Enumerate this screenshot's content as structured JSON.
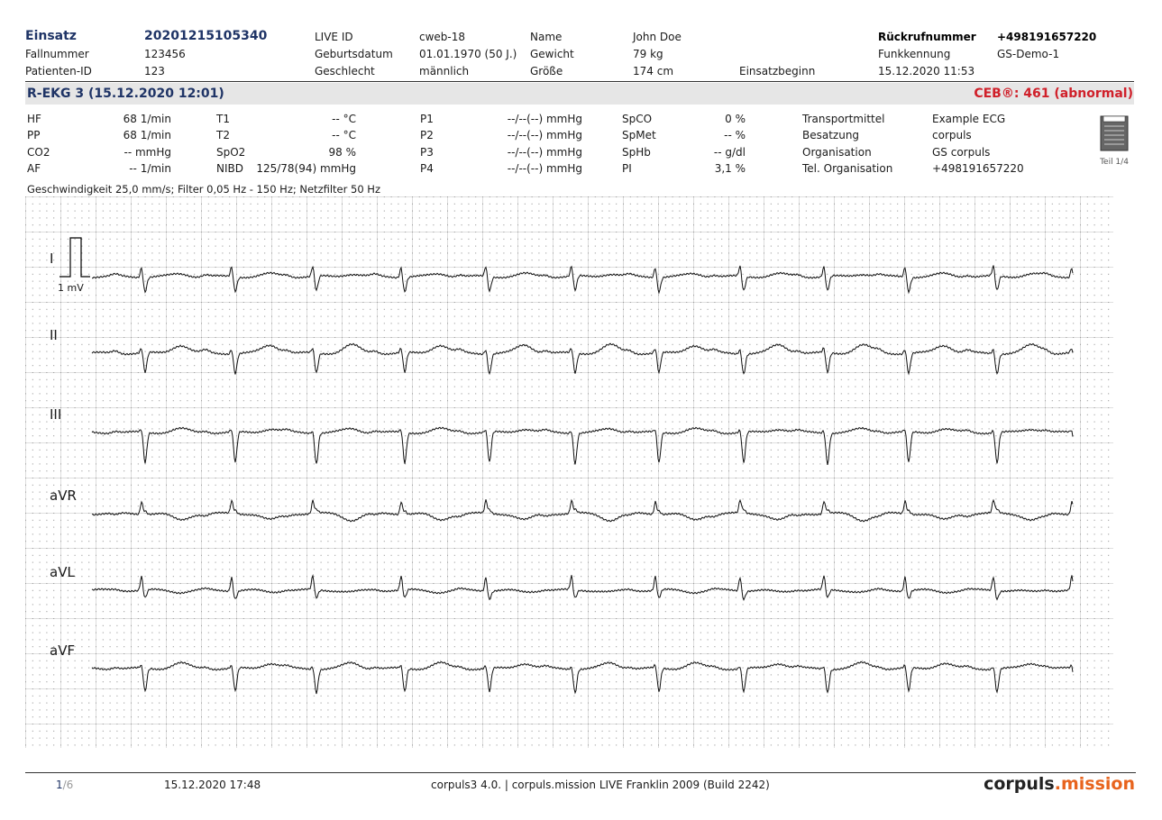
{
  "header": {
    "rows": [
      [
        {
          "label": "Einsatz",
          "value": "20201215105340"
        },
        {
          "label": "LIVE ID",
          "value": "cweb-18"
        },
        {
          "label": "Name",
          "value": "John Doe"
        },
        {
          "label": "Rückrufnummer",
          "value": "+498191657220"
        }
      ],
      [
        {
          "label": "Fallnummer",
          "value": "123456"
        },
        {
          "label": "Geburtsdatum",
          "value": "01.01.1970 (50 J.)"
        },
        {
          "label": "Gewicht",
          "value": "79 kg"
        },
        {
          "label": "Funkkennung",
          "value": "GS-Demo-1"
        }
      ],
      [
        {
          "label": "Patienten-ID",
          "value": "123"
        },
        {
          "label": "Geschlecht",
          "value": "männlich"
        },
        {
          "label": "Größe",
          "value": "174 cm"
        },
        {
          "label": "Einsatzbeginn",
          "value": "15.12.2020 11:53"
        }
      ]
    ]
  },
  "section": {
    "title": "R-EKG 3 (15.12.2020 12:01)",
    "ceb": "CEB®: 461 (abnormal)"
  },
  "vitals": [
    [
      {
        "label": "HF",
        "value": "68 1/min"
      },
      {
        "label": "T1",
        "value": "-- °C"
      },
      {
        "label": "P1",
        "value": "--/--(--) mmHg"
      },
      {
        "label": "SpCO",
        "value": "0 %"
      },
      {
        "label": "Transportmittel",
        "value": "Example ECG"
      }
    ],
    [
      {
        "label": "PP",
        "value": "68 1/min"
      },
      {
        "label": "T2",
        "value": "-- °C"
      },
      {
        "label": "P2",
        "value": "--/--(--) mmHg"
      },
      {
        "label": "SpMet",
        "value": "-- %"
      },
      {
        "label": "Besatzung",
        "value": "corpuls"
      }
    ],
    [
      {
        "label": "CO2",
        "value": "-- mmHg"
      },
      {
        "label": "SpO2",
        "value": "98 %"
      },
      {
        "label": "P3",
        "value": "--/--(--) mmHg"
      },
      {
        "label": "SpHb",
        "value": "-- g/dl"
      },
      {
        "label": "Organisation",
        "value": "GS corpuls"
      }
    ],
    [
      {
        "label": "AF",
        "value": "-- 1/min"
      },
      {
        "label": "NIBD",
        "value": "125/78(94) mmHg"
      },
      {
        "label": "P4",
        "value": "--/--(--) mmHg"
      },
      {
        "label": "PI",
        "value": "3,1 %"
      },
      {
        "label": "Tel. Organisation",
        "value": "+498191657220"
      }
    ]
  ],
  "part_label": "Teil 1/4",
  "settings": "Geschwindigkeit 25,0 mm/s; Filter 0,05 Hz - 150 Hz; Netzfilter 50 Hz",
  "ecg": {
    "calibration": "1 mV",
    "leads": [
      "I",
      "II",
      "III",
      "aVR",
      "aVL",
      "aVF"
    ]
  },
  "footer": {
    "page_current": "1",
    "page_total": "/6",
    "date": "15.12.2020 17:48",
    "version": "corpuls3 4.0. | corpuls.mission LIVE Franklin 2009 (Build 2242)",
    "logo_main": "corpuls",
    "logo_accent": ".mission"
  }
}
